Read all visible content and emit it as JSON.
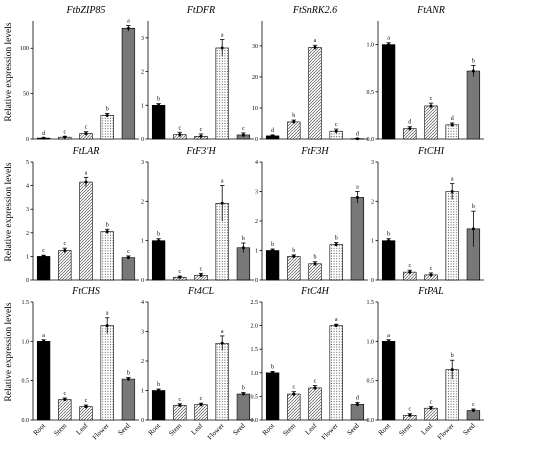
{
  "labels": {
    "ylabel": "Relative expression levels",
    "categories": [
      "Root",
      "Stem",
      "Leaf",
      "Flower",
      "Seed"
    ]
  },
  "chart_data": [
    {
      "type": "bar",
      "title": "FtbZIP85",
      "categories": [
        "Root",
        "Stem",
        "Leaf",
        "Flower",
        "Seed"
      ],
      "values": [
        1,
        2,
        6,
        26,
        122
      ],
      "errors": [
        0.3,
        1,
        2,
        2,
        3
      ],
      "letters": [
        "d",
        "c",
        "c",
        "b",
        "a"
      ],
      "ylim": [
        0,
        130
      ],
      "yticks": [
        0,
        50,
        100
      ]
    },
    {
      "type": "bar",
      "title": "FtDFR",
      "categories": [
        "Root",
        "Stem",
        "Leaf",
        "Flower",
        "Seed"
      ],
      "values": [
        1,
        0.13,
        0.08,
        2.7,
        0.12
      ],
      "errors": [
        0.05,
        0.07,
        0.07,
        0.25,
        0.06
      ],
      "letters": [
        "b",
        "c",
        "c",
        "a",
        "c"
      ],
      "ylim": [
        0,
        3.5
      ],
      "yticks": [
        0,
        1,
        2,
        3
      ]
    },
    {
      "type": "bar",
      "title": "FtSnRK2.6",
      "categories": [
        "Root",
        "Stem",
        "Leaf",
        "Flower",
        "Seed"
      ],
      "values": [
        1,
        5.5,
        29.5,
        2.5,
        0.1
      ],
      "errors": [
        0.3,
        0.6,
        0.7,
        0.7,
        0.1
      ],
      "letters": [
        "d",
        "b",
        "a",
        "c",
        "d"
      ],
      "ylim": [
        0,
        38
      ],
      "yticks": [
        0,
        10,
        20,
        30
      ]
    },
    {
      "type": "bar",
      "title": "FtANR",
      "categories": [
        "Root",
        "Stem",
        "Leaf",
        "Flower",
        "Seed"
      ],
      "values": [
        1,
        0.11,
        0.35,
        0.15,
        0.72
      ],
      "errors": [
        0.02,
        0.02,
        0.03,
        0.02,
        0.06
      ],
      "letters": [
        "a",
        "d",
        "c",
        "d",
        "b"
      ],
      "ylim": [
        0,
        1.25
      ],
      "yticks": [
        0,
        0.5,
        1.0
      ],
      "tickfmt": "1"
    },
    {
      "type": "bar",
      "title": "FtLAR",
      "categories": [
        "Root",
        "Stem",
        "Leaf",
        "Flower",
        "Seed"
      ],
      "values": [
        1,
        1.25,
        4.15,
        2.05,
        0.95
      ],
      "errors": [
        0.05,
        0.1,
        0.2,
        0.1,
        0.07
      ],
      "letters": [
        "c",
        "c",
        "a",
        "b",
        "c"
      ],
      "ylim": [
        0,
        5
      ],
      "yticks": [
        0,
        1,
        2,
        3,
        4,
        5
      ]
    },
    {
      "type": "bar",
      "title": "FtF3'H",
      "categories": [
        "Root",
        "Stem",
        "Leaf",
        "Flower",
        "Seed"
      ],
      "values": [
        1,
        0.07,
        0.12,
        1.95,
        0.82
      ],
      "errors": [
        0.05,
        0.03,
        0.05,
        0.45,
        0.12
      ],
      "letters": [
        "b",
        "c",
        "c",
        "a",
        "b"
      ],
      "ylim": [
        0,
        3
      ],
      "yticks": [
        0,
        1,
        2,
        3
      ]
    },
    {
      "type": "bar",
      "title": "FtF3H",
      "categories": [
        "Root",
        "Stem",
        "Leaf",
        "Flower",
        "Seed"
      ],
      "values": [
        1,
        0.8,
        0.55,
        1.2,
        2.8
      ],
      "errors": [
        0.05,
        0.05,
        0.07,
        0.07,
        0.2
      ],
      "letters": [
        "b",
        "b",
        "b",
        "b",
        "a"
      ],
      "ylim": [
        0,
        4
      ],
      "yticks": [
        0,
        1,
        2,
        3,
        4
      ]
    },
    {
      "type": "bar",
      "title": "FtCHI",
      "categories": [
        "Root",
        "Stem",
        "Leaf",
        "Flower",
        "Seed"
      ],
      "values": [
        1,
        0.2,
        0.13,
        2.25,
        1.3
      ],
      "errors": [
        0.05,
        0.05,
        0.05,
        0.2,
        0.45
      ],
      "letters": [
        "b",
        "c",
        "c",
        "a",
        "b"
      ],
      "ylim": [
        0,
        3
      ],
      "yticks": [
        0,
        1,
        2,
        3
      ]
    },
    {
      "type": "bar",
      "title": "FtCHS",
      "categories": [
        "Root",
        "Stem",
        "Leaf",
        "Flower",
        "Seed"
      ],
      "values": [
        1,
        0.26,
        0.17,
        1.2,
        0.52
      ],
      "errors": [
        0.02,
        0.02,
        0.02,
        0.1,
        0.02
      ],
      "letters": [
        "a",
        "c",
        "c",
        "a",
        "b"
      ],
      "ylim": [
        0,
        1.5
      ],
      "yticks": [
        0,
        0.5,
        1.0,
        1.5
      ],
      "tickfmt": "1"
    },
    {
      "type": "bar",
      "title": "Ft4CL",
      "categories": [
        "Root",
        "Stem",
        "Leaf",
        "Flower",
        "Seed"
      ],
      "values": [
        1,
        0.5,
        0.52,
        2.6,
        0.88
      ],
      "errors": [
        0.05,
        0.05,
        0.05,
        0.25,
        0.05
      ],
      "letters": [
        "b",
        "c",
        "c",
        "a",
        "b"
      ],
      "ylim": [
        0,
        4
      ],
      "yticks": [
        0,
        1,
        2,
        3,
        4
      ]
    },
    {
      "type": "bar",
      "title": "FtC4H",
      "categories": [
        "Root",
        "Stem",
        "Leaf",
        "Flower",
        "Seed"
      ],
      "values": [
        1,
        0.55,
        0.68,
        2.0,
        0.33
      ],
      "errors": [
        0.03,
        0.05,
        0.05,
        0.03,
        0.04
      ],
      "letters": [
        "b",
        "c",
        "c",
        "a",
        "d"
      ],
      "ylim": [
        0,
        2.5
      ],
      "yticks": [
        0,
        0.5,
        1.0,
        1.5,
        2.0,
        2.5
      ],
      "tickfmt": "1"
    },
    {
      "type": "bar",
      "title": "FtPAL",
      "categories": [
        "Root",
        "Stem",
        "Leaf",
        "Flower",
        "Seed"
      ],
      "values": [
        1,
        0.06,
        0.15,
        0.64,
        0.12
      ],
      "errors": [
        0.02,
        0.02,
        0.02,
        0.12,
        0.02
      ],
      "letters": [
        "a",
        "c",
        "c",
        "b",
        "c"
      ],
      "ylim": [
        0,
        1.5
      ],
      "yticks": [
        0,
        0.5,
        1.0,
        1.5
      ],
      "tickfmt": "1"
    }
  ]
}
